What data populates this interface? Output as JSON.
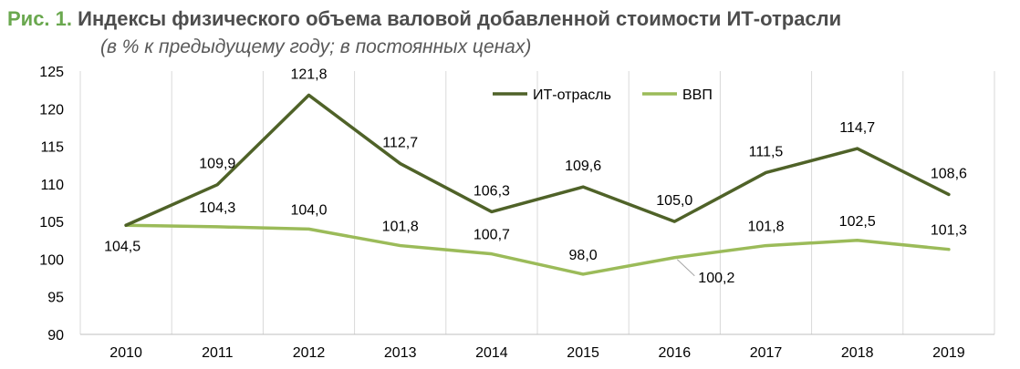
{
  "header": {
    "fig_label": "Рис. 1.",
    "title": "Индексы физического объема валовой добавленной стоимости ИТ-отрасли",
    "subtitle": "(в % к предыдущему году; в постоянных ценах)"
  },
  "colors": {
    "it": "#4f6228",
    "gdp": "#9bbb59",
    "accent": "#6aa84f",
    "grid": "#d9d9d9"
  },
  "chart_data": {
    "type": "line",
    "title": "Индексы физического объема валовой добавленной стоимости ИТ-отрасли",
    "subtitle": "(в % к предыдущему году; в постоянных ценах)",
    "categories": [
      "2010",
      "2011",
      "2012",
      "2013",
      "2014",
      "2015",
      "2016",
      "2017",
      "2018",
      "2019"
    ],
    "yticks": [
      "90",
      "95",
      "100",
      "105",
      "110",
      "115",
      "120",
      "125"
    ],
    "ylim": [
      90,
      125
    ],
    "grid": "vertical",
    "legend": "top-center",
    "series": [
      {
        "name": "ИТ-отрасль",
        "values": [
          104.5,
          109.9,
          121.8,
          112.7,
          106.3,
          109.6,
          105.0,
          111.5,
          114.7,
          108.6
        ],
        "labels": [
          "104,5",
          "109,9",
          "121,8",
          "112,7",
          "106,3",
          "109,6",
          "105,0",
          "111,5",
          "114,7",
          "108,6"
        ]
      },
      {
        "name": "ВВП",
        "values": [
          104.5,
          104.3,
          104.0,
          101.8,
          100.7,
          98.0,
          100.2,
          101.8,
          102.5,
          101.3
        ],
        "labels": [
          "104,5",
          "104,3",
          "104,0",
          "101,8",
          "100,7",
          "98,0",
          "100,2",
          "101,8",
          "102,5",
          "101,3"
        ]
      }
    ]
  }
}
